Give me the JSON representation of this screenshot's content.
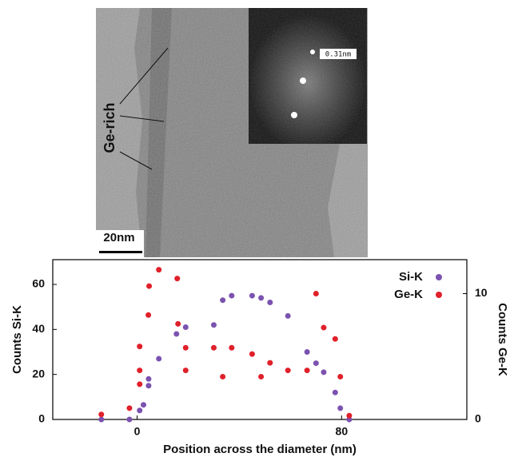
{
  "image": {
    "side_label": "Ge-rich",
    "scale_bar": "20nm",
    "inset_label": "0.31nm"
  },
  "chart_data": {
    "type": "scatter",
    "xlabel": "Position across the diameter (nm)",
    "ylabel": "Counts Si-K",
    "y2label": "Counts Ge-K",
    "xlim": [
      -33,
      129
    ],
    "xticks": [
      0,
      80
    ],
    "ylim": [
      0,
      71
    ],
    "yticks": [
      0,
      20,
      40,
      60
    ],
    "y2lim": [
      0,
      12.7
    ],
    "y2ticks": [
      0,
      10
    ],
    "legend": "upper right",
    "series": [
      {
        "name": "Si-K",
        "color": "#7b52b0",
        "x": [
          -14,
          -3,
          1,
          2.5,
          4.5,
          4.5,
          8.5,
          15.4,
          19,
          30,
          33.5,
          37,
          45,
          48.5,
          52,
          59,
          66.5,
          70,
          73,
          77.5,
          79.5,
          83
        ],
        "values": [
          0,
          0,
          4,
          6.5,
          15,
          18,
          27,
          38,
          41,
          42,
          53,
          55,
          55,
          54,
          52,
          46,
          30,
          25,
          21,
          12,
          5,
          0
        ]
      },
      {
        "name": "Ge-K",
        "color": "#e0202a",
        "axis": "y2",
        "x": [
          -14,
          -3,
          1,
          1,
          1,
          4.7,
          4.4,
          8.5,
          15.7,
          16,
          19,
          19,
          30,
          33.5,
          37,
          45,
          48.5,
          52,
          59,
          66.5,
          70,
          73,
          77.5,
          79.5,
          83
        ],
        "values": [
          0.4,
          0.9,
          5.8,
          3.9,
          2.8,
          10.6,
          8.3,
          11.9,
          11.2,
          7.6,
          5.7,
          3.9,
          5.7,
          3.4,
          5.7,
          5.2,
          3.4,
          4.5,
          3.9,
          3.9,
          10,
          7.3,
          6.4,
          3.4,
          0.3
        ]
      }
    ]
  }
}
